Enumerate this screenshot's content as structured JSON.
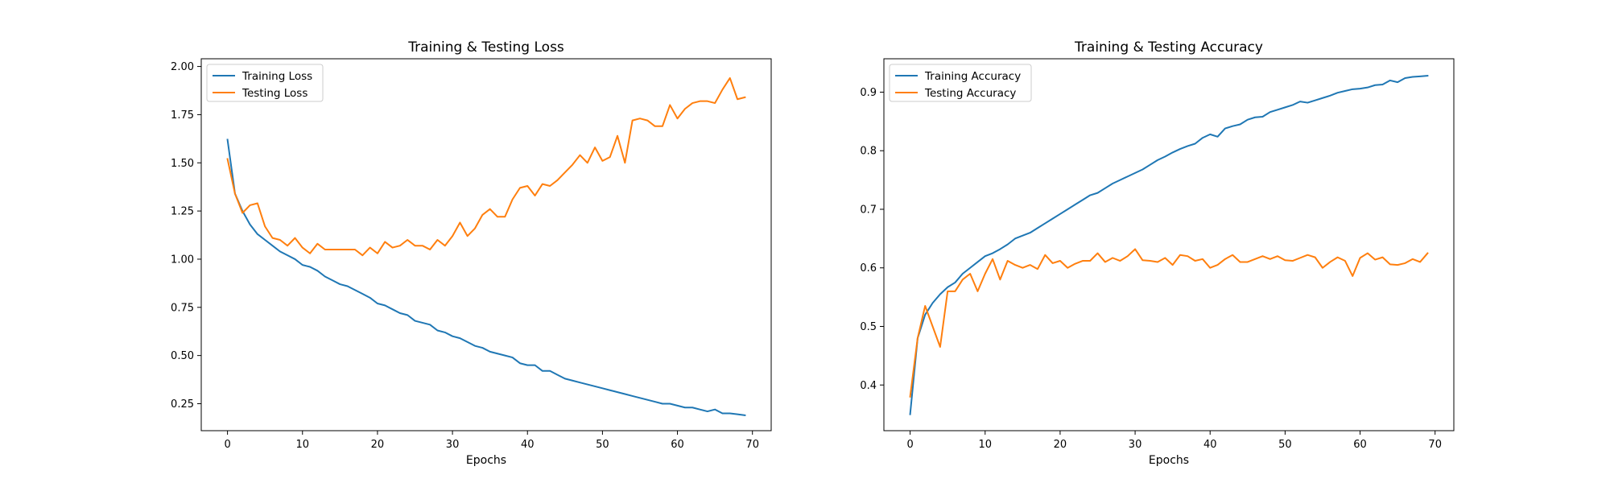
{
  "chart_data": [
    {
      "type": "line",
      "title": "Training & Testing Loss",
      "xlabel": "Epochs",
      "ylabel": "",
      "xlim": [
        -3.5,
        72.5
      ],
      "ylim": [
        0.11,
        2.04
      ],
      "xticks": [
        0,
        10,
        20,
        30,
        40,
        50,
        60,
        70
      ],
      "xtick_labels": [
        "0",
        "10",
        "20",
        "30",
        "40",
        "50",
        "60",
        "70"
      ],
      "yticks": [
        0.25,
        0.5,
        0.75,
        1.0,
        1.25,
        1.5,
        1.75,
        2.0
      ],
      "ytick_labels": [
        "0.25",
        "0.50",
        "0.75",
        "1.00",
        "1.25",
        "1.50",
        "1.75",
        "2.00"
      ],
      "grid": false,
      "legend_position": "top-left",
      "series": [
        {
          "name": "Training Loss",
          "color": "#1f77b4",
          "values": [
            1.62,
            1.34,
            1.25,
            1.18,
            1.13,
            1.1,
            1.07,
            1.04,
            1.02,
            1.0,
            0.97,
            0.96,
            0.94,
            0.91,
            0.89,
            0.87,
            0.86,
            0.84,
            0.82,
            0.8,
            0.77,
            0.76,
            0.74,
            0.72,
            0.71,
            0.68,
            0.67,
            0.66,
            0.63,
            0.62,
            0.6,
            0.59,
            0.57,
            0.55,
            0.54,
            0.52,
            0.51,
            0.5,
            0.49,
            0.46,
            0.45,
            0.45,
            0.42,
            0.42,
            0.4,
            0.38,
            0.37,
            0.36,
            0.35,
            0.34,
            0.33,
            0.32,
            0.31,
            0.3,
            0.29,
            0.28,
            0.27,
            0.26,
            0.25,
            0.25,
            0.24,
            0.23,
            0.23,
            0.22,
            0.21,
            0.22,
            0.2,
            0.2,
            0.195,
            0.19
          ]
        },
        {
          "name": "Testing Loss",
          "color": "#ff7f0e",
          "values": [
            1.52,
            1.34,
            1.24,
            1.28,
            1.29,
            1.17,
            1.11,
            1.1,
            1.07,
            1.11,
            1.06,
            1.03,
            1.08,
            1.05,
            1.05,
            1.05,
            1.05,
            1.05,
            1.02,
            1.06,
            1.03,
            1.09,
            1.06,
            1.07,
            1.1,
            1.07,
            1.07,
            1.05,
            1.1,
            1.07,
            1.12,
            1.19,
            1.12,
            1.16,
            1.23,
            1.26,
            1.22,
            1.22,
            1.31,
            1.37,
            1.38,
            1.33,
            1.39,
            1.38,
            1.41,
            1.45,
            1.49,
            1.54,
            1.5,
            1.58,
            1.51,
            1.53,
            1.64,
            1.5,
            1.72,
            1.73,
            1.72,
            1.69,
            1.69,
            1.8,
            1.73,
            1.78,
            1.81,
            1.82,
            1.82,
            1.81,
            1.88,
            1.94,
            1.83,
            1.84
          ]
        }
      ]
    },
    {
      "type": "line",
      "title": "Training & Testing Accuracy",
      "xlabel": "Epochs",
      "ylabel": "",
      "xlim": [
        -3.5,
        72.5
      ],
      "ylim": [
        0.322,
        0.957
      ],
      "xticks": [
        0,
        10,
        20,
        30,
        40,
        50,
        60,
        70
      ],
      "xtick_labels": [
        "0",
        "10",
        "20",
        "30",
        "40",
        "50",
        "60",
        "70"
      ],
      "yticks": [
        0.4,
        0.5,
        0.6,
        0.7,
        0.8,
        0.9
      ],
      "ytick_labels": [
        "0.4",
        "0.5",
        "0.6",
        "0.7",
        "0.8",
        "0.9"
      ],
      "grid": false,
      "legend_position": "top-left",
      "series": [
        {
          "name": "Training Accuracy",
          "color": "#1f77b4",
          "values": [
            0.35,
            0.48,
            0.52,
            0.54,
            0.555,
            0.567,
            0.575,
            0.59,
            0.6,
            0.61,
            0.62,
            0.625,
            0.632,
            0.64,
            0.65,
            0.655,
            0.66,
            0.668,
            0.676,
            0.684,
            0.692,
            0.7,
            0.708,
            0.716,
            0.724,
            0.728,
            0.736,
            0.744,
            0.75,
            0.756,
            0.762,
            0.768,
            0.776,
            0.784,
            0.79,
            0.797,
            0.803,
            0.808,
            0.812,
            0.822,
            0.828,
            0.824,
            0.838,
            0.842,
            0.845,
            0.853,
            0.857,
            0.858,
            0.866,
            0.87,
            0.874,
            0.878,
            0.884,
            0.882,
            0.886,
            0.89,
            0.894,
            0.899,
            0.902,
            0.905,
            0.906,
            0.908,
            0.912,
            0.913,
            0.92,
            0.917,
            0.924,
            0.926,
            0.927,
            0.928
          ]
        },
        {
          "name": "Testing Accuracy",
          "color": "#ff7f0e",
          "values": [
            0.38,
            0.48,
            0.535,
            0.5,
            0.465,
            0.56,
            0.56,
            0.58,
            0.59,
            0.56,
            0.59,
            0.615,
            0.58,
            0.612,
            0.605,
            0.6,
            0.605,
            0.598,
            0.622,
            0.608,
            0.612,
            0.6,
            0.607,
            0.612,
            0.612,
            0.625,
            0.61,
            0.617,
            0.612,
            0.62,
            0.632,
            0.613,
            0.612,
            0.61,
            0.617,
            0.605,
            0.622,
            0.62,
            0.612,
            0.615,
            0.6,
            0.605,
            0.615,
            0.622,
            0.61,
            0.61,
            0.615,
            0.62,
            0.615,
            0.62,
            0.613,
            0.612,
            0.617,
            0.622,
            0.618,
            0.6,
            0.61,
            0.618,
            0.612,
            0.586,
            0.617,
            0.625,
            0.614,
            0.618,
            0.606,
            0.605,
            0.608,
            0.615,
            0.61,
            0.625
          ]
        }
      ]
    }
  ]
}
